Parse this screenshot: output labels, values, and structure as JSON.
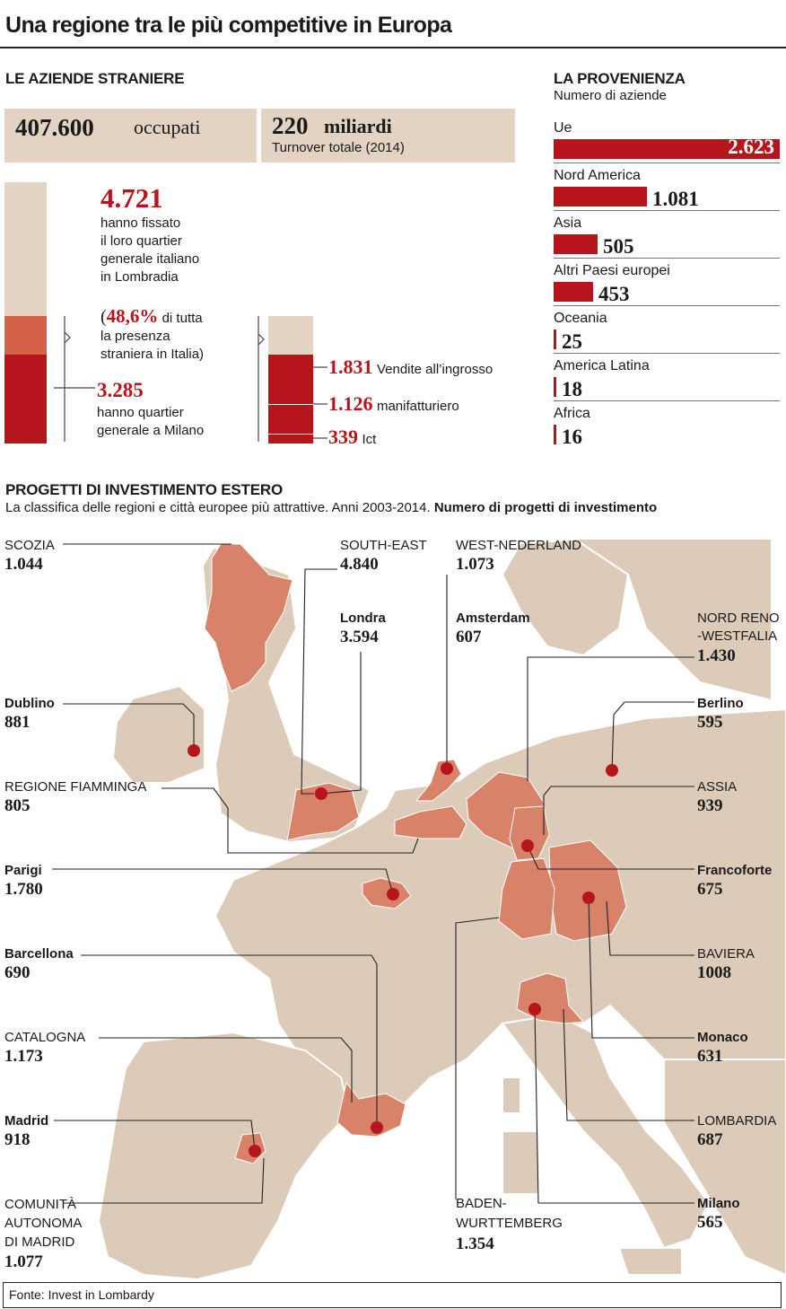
{
  "title": "Una regione tra le più competitive in Europa",
  "aziende": {
    "heading": "LE AZIENDE STRANIERE",
    "occupati_value": "407.600",
    "occupati_label": "occupati",
    "turnover_value": "220",
    "turnover_unit": "miliardi",
    "turnover_label": "Turnover totale (2014)",
    "hq_value": "4.721",
    "hq_text": [
      "hanno fissato",
      "il loro quartier",
      "generale italiano",
      "in Lombradia"
    ],
    "share_open": "(",
    "share_value": "48,6%",
    "share_text_1": "di tutta",
    "share_text_2": "la presenza",
    "share_text_3": "straniera in Italia)",
    "milano_value": "3.285",
    "milano_text": [
      "hanno quartier",
      "generale a Milano"
    ]
  },
  "settori": [
    {
      "value": "1.831",
      "label": "Vendite all’ingrosso"
    },
    {
      "value": "1.126",
      "label": "manifatturiero"
    },
    {
      "value": "339",
      "label": "Ict"
    }
  ],
  "provenienza": {
    "heading": "LA PROVENIENZA",
    "subheading": "Numero di aziende"
  },
  "progetti": {
    "heading": "PROGETTI DI INVESTIMENTO ESTERO",
    "subtitle_plain": "La classifica delle regioni e città europee più attrattive. Anni 2003-2014.",
    "subtitle_bold": "Numero di progetti di investimento"
  },
  "map_labels": [
    {
      "name": "SCOZIA",
      "value": "1.044"
    },
    {
      "name": "SOUTH-EAST",
      "value": "4.840"
    },
    {
      "name": "WEST-NEDERLAND",
      "value": "1.073"
    },
    {
      "name": "Londra",
      "value": "3.594"
    },
    {
      "name": "Amsterdam",
      "value": "607"
    },
    {
      "name": "NORD RENO\n-WESTFALIA",
      "value": "1.430"
    },
    {
      "name": "Dublino",
      "value": "881"
    },
    {
      "name": "Berlino",
      "value": "595"
    },
    {
      "name": "REGIONE FIAMMINGA",
      "value": "805"
    },
    {
      "name": "ASSIA",
      "value": "939"
    },
    {
      "name": "Parigi",
      "value": "1.780"
    },
    {
      "name": "Francoforte",
      "value": "675"
    },
    {
      "name": "Barcellona",
      "value": "690"
    },
    {
      "name": "BAVIERA",
      "value": "1008"
    },
    {
      "name": "CATALOGNA",
      "value": "1.173"
    },
    {
      "name": "Monaco",
      "value": "631"
    },
    {
      "name": "Madrid",
      "value": "918"
    },
    {
      "name": "LOMBARDIA",
      "value": "687"
    },
    {
      "name": "COMUNITÀ\nAUTONOMA\nDI MADRID",
      "value": "1.077"
    },
    {
      "name": "BADEN-\nWURTTEMBERG",
      "value": "1.354"
    },
    {
      "name": "Milano",
      "value": "565"
    }
  ],
  "source": "Fonte: Invest in Lombardy",
  "colors": {
    "accent": "#b5151b",
    "beige": "#e3d3c2",
    "region": "#d9826a",
    "land": "#dccbb8"
  },
  "chart_data": [
    {
      "type": "bar",
      "orientation": "horizontal",
      "title": "LA PROVENIENZA",
      "subtitle": "Numero di aziende",
      "categories": [
        "Ue",
        "Nord America",
        "Asia",
        "Altri Paesi europei",
        "Oceania",
        "America Latina",
        "Africa"
      ],
      "values": [
        2623,
        1081,
        505,
        453,
        25,
        18,
        16
      ],
      "value_labels": [
        "2.623",
        "1.081",
        "505",
        "453",
        "25",
        "18",
        "16"
      ],
      "xlim": [
        0,
        2623
      ],
      "grid": false
    },
    {
      "type": "bar",
      "orientation": "vertical-stacked",
      "title": "",
      "categories": [
        "Lombardia",
        "Milano"
      ],
      "values": [
        4721,
        3285
      ],
      "value_labels": [
        "4.721",
        "3.285"
      ],
      "ylim": [
        0,
        9714
      ]
    },
    {
      "type": "bar",
      "orientation": "vertical-stacked",
      "title": "",
      "categories": [
        "Vendite all’ingrosso",
        "manifatturiero",
        "Ict"
      ],
      "values": [
        1831,
        1126,
        339
      ],
      "value_labels": [
        "1.831",
        "1.126",
        "339"
      ],
      "ylim": [
        0,
        4721
      ]
    }
  ]
}
